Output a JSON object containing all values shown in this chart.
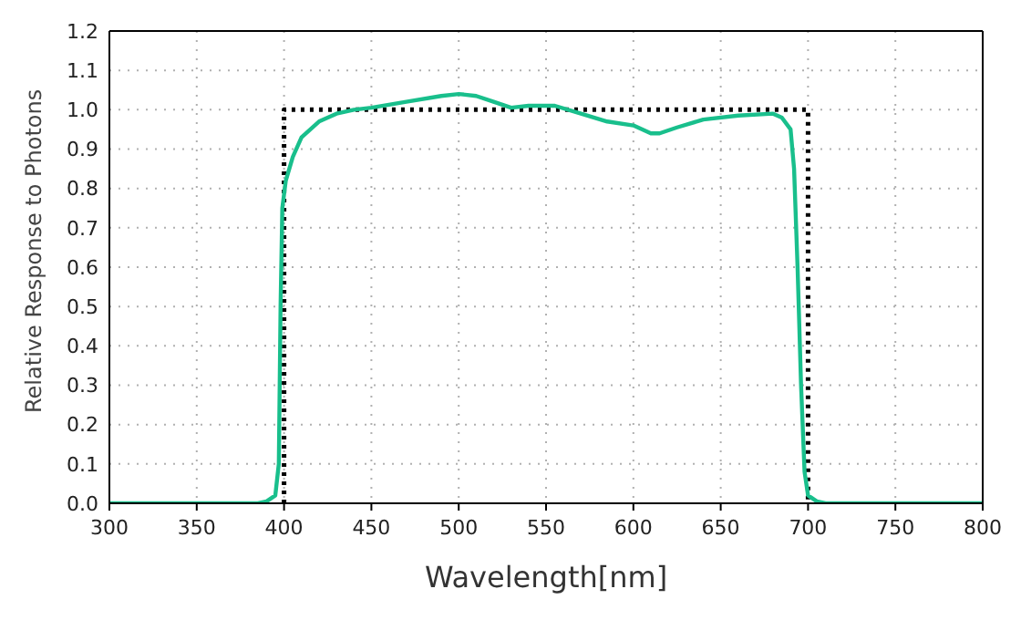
{
  "chart_data": {
    "type": "line",
    "xlabel": "Wavelength[nm]",
    "ylabel": "Relative Response to Photons",
    "xlim": [
      300,
      800
    ],
    "xticks": [
      300,
      350,
      400,
      450,
      500,
      550,
      600,
      650,
      700,
      750,
      800
    ],
    "ylim": [
      0,
      1.2
    ],
    "yticks": [
      {
        "value": 0,
        "label": "0.0"
      },
      0.1,
      0.2,
      0.3,
      0.4,
      0.5,
      0.6,
      0.7,
      0.8,
      0.9,
      {
        "value": 1,
        "label": "1.0"
      },
      1.1,
      1.2
    ],
    "grid": true,
    "marker": "none",
    "series": [
      {
        "color": "#000000",
        "line_style": "dotted",
        "x": [
          400,
          400,
          700,
          700
        ],
        "values": [
          0,
          1,
          1,
          0
        ]
      },
      {
        "color": "#19bf8c",
        "line_style": "solid",
        "x": [
          300,
          385,
          390,
          395,
          397,
          398,
          399,
          401,
          405,
          410,
          420,
          430,
          440,
          450,
          470,
          490,
          500,
          510,
          520,
          530,
          540,
          555,
          570,
          585,
          600,
          610,
          615,
          625,
          640,
          660,
          680,
          685,
          690,
          692,
          694,
          696,
          698,
          700,
          705,
          710,
          800
        ],
        "values": [
          0,
          0,
          0.005,
          0.02,
          0.1,
          0.5,
          0.75,
          0.82,
          0.88,
          0.93,
          0.97,
          0.99,
          1.0,
          1.005,
          1.02,
          1.035,
          1.04,
          1.035,
          1.02,
          1.005,
          1.01,
          1.01,
          0.99,
          0.97,
          0.96,
          0.94,
          0.94,
          0.955,
          0.975,
          0.985,
          0.99,
          0.98,
          0.95,
          0.85,
          0.6,
          0.3,
          0.08,
          0.02,
          0.005,
          0,
          0
        ]
      }
    ]
  }
}
